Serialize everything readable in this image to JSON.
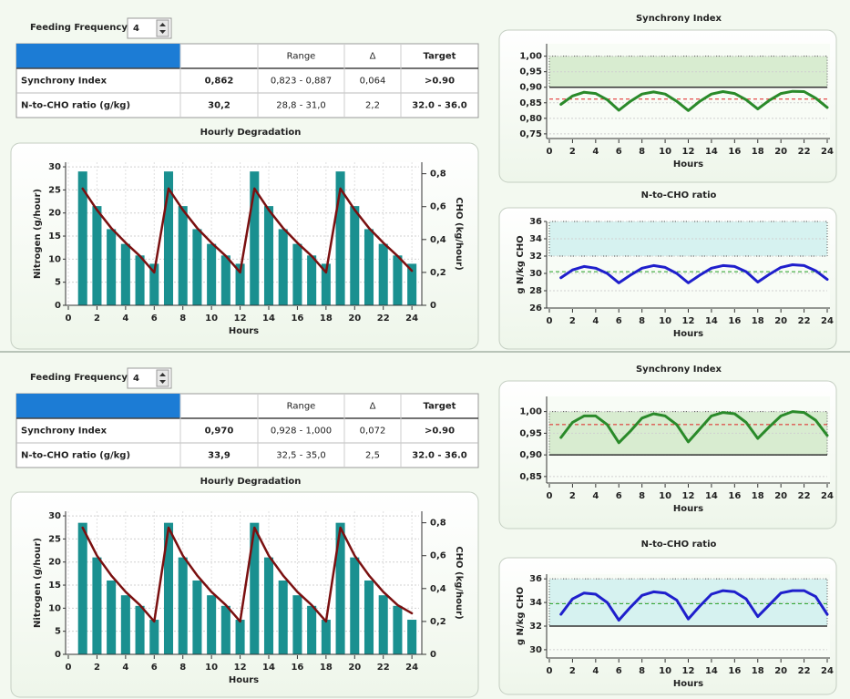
{
  "panels": [
    {
      "feeding_frequency": {
        "label": "Feeding Frequency",
        "value": 4
      },
      "table": {
        "header": [
          "Range",
          "Δ",
          "Target"
        ],
        "rows": [
          [
            "Synchrony Index",
            "0,862",
            "0,823 - 0,887",
            "0,064",
            ">0.90"
          ],
          [
            "N-to-CHO ratio (g/kg)",
            "30,2",
            "28,8 - 31,0",
            "2,2",
            "32.0 - 36.0"
          ]
        ]
      }
    },
    {
      "feeding_frequency": {
        "label": "Feeding Frequency",
        "value": 4
      },
      "table": {
        "header": [
          "Range",
          "Δ",
          "Target"
        ],
        "rows": [
          [
            "Synchrony Index",
            "0,970",
            "0,928 - 1,000",
            "0,072",
            ">0.90"
          ],
          [
            "N-to-CHO ratio (g/kg)",
            "33,9",
            "32,5 - 35,0",
            "2,5",
            "32.0 - 36.0"
          ]
        ]
      }
    }
  ],
  "chart_data": [
    {
      "type": "bar",
      "title": "Hourly Degradation",
      "xlabel": "Hours",
      "ylabel": "Nitrogen (g/hour)",
      "y2label": "CHO (kg/hour)",
      "x": [
        1,
        2,
        3,
        4,
        5,
        6,
        7,
        8,
        9,
        10,
        11,
        12,
        13,
        14,
        15,
        16,
        17,
        18,
        19,
        20,
        21,
        22,
        23,
        24
      ],
      "xlim": [
        0,
        24.5
      ],
      "xticks": [
        0,
        2,
        4,
        6,
        8,
        10,
        12,
        14,
        16,
        18,
        20,
        22,
        24
      ],
      "ylim": [
        0,
        31
      ],
      "yticks": [
        0,
        5,
        10,
        15,
        20,
        25,
        30
      ],
      "y2lim": [
        0,
        0.87
      ],
      "y2ticks": [
        0,
        {
          "value": 0.2,
          "label": "0,2"
        },
        {
          "value": 0.4,
          "label": "0,4"
        },
        {
          "value": 0.6,
          "label": "0,6"
        },
        {
          "value": 0.8,
          "label": "0,8"
        }
      ],
      "grid": true,
      "series": [
        {
          "type": "bar",
          "color": "#1a9090",
          "values": [
            29,
            21.5,
            16.5,
            13.3,
            10.8,
            9,
            29,
            21.5,
            16.5,
            13.3,
            10.8,
            9,
            29,
            21.5,
            16.5,
            13.3,
            10.8,
            9,
            29,
            21.5,
            16.5,
            13.3,
            10.8,
            9
          ]
        },
        {
          "type": "line",
          "axis": "y2",
          "color": "#7a1010",
          "values": [
            0.71,
            0.58,
            0.47,
            0.38,
            0.3,
            0.2,
            0.71,
            0.58,
            0.47,
            0.38,
            0.3,
            0.2,
            0.71,
            0.58,
            0.47,
            0.38,
            0.3,
            0.2,
            0.71,
            0.58,
            0.47,
            0.38,
            0.3,
            0.21
          ]
        }
      ]
    },
    {
      "type": "line",
      "title": "Synchrony Index",
      "xlabel": "Hours",
      "x": [
        1,
        2,
        3,
        4,
        5,
        6,
        7,
        8,
        9,
        10,
        11,
        12,
        13,
        14,
        15,
        16,
        17,
        18,
        19,
        20,
        21,
        22,
        23,
        24
      ],
      "xlim": [
        0,
        24
      ],
      "xticks": [
        0,
        2,
        4,
        6,
        8,
        10,
        12,
        14,
        16,
        18,
        20,
        22,
        24
      ],
      "ylim": [
        0.735,
        1.04
      ],
      "yticks": [
        {
          "value": 0.75,
          "label": "0,75"
        },
        {
          "value": 0.8,
          "label": "0,80"
        },
        {
          "value": 0.85,
          "label": "0,85"
        },
        {
          "value": 0.9,
          "label": "0,90"
        },
        {
          "value": 0.95,
          "label": "0,95"
        },
        {
          "value": 1.0,
          "label": "1,00"
        }
      ],
      "grid": true,
      "target_band": [
        0.9,
        1.0
      ],
      "band_color": "#d8ecd0",
      "reference_lines": [
        {
          "value": 0.9,
          "color": "#333333",
          "style": "solid"
        },
        {
          "value": 0.862,
          "color": "#e02020",
          "style": "dashed"
        }
      ],
      "series": [
        {
          "color": "#2a8a2a",
          "values": [
            0.845,
            0.872,
            0.884,
            0.88,
            0.86,
            0.826,
            0.855,
            0.878,
            0.885,
            0.878,
            0.855,
            0.825,
            0.855,
            0.878,
            0.886,
            0.88,
            0.86,
            0.83,
            0.858,
            0.88,
            0.887,
            0.886,
            0.865,
            0.835
          ]
        }
      ]
    },
    {
      "type": "line",
      "title": "N-to-CHO ratio",
      "xlabel": "Hours",
      "ylabel": "g N/kg CHO",
      "x": [
        1,
        2,
        3,
        4,
        5,
        6,
        7,
        8,
        9,
        10,
        11,
        12,
        13,
        14,
        15,
        16,
        17,
        18,
        19,
        20,
        21,
        22,
        23,
        24
      ],
      "xlim": [
        0,
        24
      ],
      "xticks": [
        0,
        2,
        4,
        6,
        8,
        10,
        12,
        14,
        16,
        18,
        20,
        22,
        24
      ],
      "ylim": [
        26,
        36
      ],
      "yticks": [
        26,
        28,
        30,
        32,
        34,
        36
      ],
      "grid": true,
      "target_band": [
        32,
        36
      ],
      "band_color": "#d6f2f0",
      "reference_lines": [
        {
          "value": 30.2,
          "color": "#22a022",
          "style": "dashed"
        }
      ],
      "series": [
        {
          "color": "#1f1fcc",
          "values": [
            29.5,
            30.4,
            30.8,
            30.6,
            30,
            28.9,
            29.8,
            30.6,
            30.9,
            30.7,
            30,
            28.9,
            29.8,
            30.6,
            30.9,
            30.8,
            30.2,
            29,
            29.9,
            30.7,
            31,
            30.9,
            30.3,
            29.3
          ]
        }
      ]
    },
    {
      "type": "bar",
      "title": "Hourly Degradation",
      "xlabel": "Hours",
      "ylabel": "Nitrogen (g/hour)",
      "y2label": "CHO (kg/hour)",
      "x": [
        1,
        2,
        3,
        4,
        5,
        6,
        7,
        8,
        9,
        10,
        11,
        12,
        13,
        14,
        15,
        16,
        17,
        18,
        19,
        20,
        21,
        22,
        23,
        24
      ],
      "xlim": [
        0,
        24.5
      ],
      "xticks": [
        0,
        2,
        4,
        6,
        8,
        10,
        12,
        14,
        16,
        18,
        20,
        22,
        24
      ],
      "ylim": [
        0,
        31
      ],
      "yticks": [
        0,
        5,
        10,
        15,
        20,
        25,
        30
      ],
      "y2lim": [
        0,
        0.87
      ],
      "y2ticks": [
        0,
        {
          "value": 0.2,
          "label": "0,2"
        },
        {
          "value": 0.4,
          "label": "0,4"
        },
        {
          "value": 0.6,
          "label": "0,6"
        },
        {
          "value": 0.8,
          "label": "0,8"
        }
      ],
      "grid": true,
      "series": [
        {
          "type": "bar",
          "color": "#1a9090",
          "values": [
            28.5,
            21,
            16,
            12.8,
            10.5,
            7.5,
            28.5,
            21,
            16,
            12.8,
            10.5,
            7.5,
            28.5,
            21,
            16,
            12.8,
            10.5,
            7.5,
            28.5,
            21,
            16,
            12.8,
            10.5,
            7.5
          ]
        },
        {
          "type": "line",
          "axis": "y2",
          "color": "#7a1010",
          "values": [
            0.77,
            0.6,
            0.48,
            0.38,
            0.3,
            0.2,
            0.77,
            0.6,
            0.48,
            0.38,
            0.3,
            0.2,
            0.77,
            0.6,
            0.48,
            0.38,
            0.3,
            0.2,
            0.77,
            0.6,
            0.48,
            0.38,
            0.3,
            0.25
          ]
        }
      ]
    },
    {
      "type": "line",
      "title": "Synchrony Index",
      "xlabel": "Hours",
      "x": [
        1,
        2,
        3,
        4,
        5,
        6,
        7,
        8,
        9,
        10,
        11,
        12,
        13,
        14,
        15,
        16,
        17,
        18,
        19,
        20,
        21,
        22,
        23,
        24
      ],
      "xlim": [
        0,
        24
      ],
      "xticks": [
        0,
        2,
        4,
        6,
        8,
        10,
        12,
        14,
        16,
        18,
        20,
        22,
        24
      ],
      "ylim": [
        0.835,
        1.035
      ],
      "yticks": [
        {
          "value": 0.85,
          "label": "0,85"
        },
        {
          "value": 0.9,
          "label": "0,90"
        },
        {
          "value": 0.95,
          "label": "0,95"
        },
        {
          "value": 1.0,
          "label": "1,00"
        }
      ],
      "grid": true,
      "target_band": [
        0.9,
        1.0
      ],
      "band_color": "#d8ecd0",
      "reference_lines": [
        {
          "value": 0.9,
          "color": "#333333",
          "style": "solid"
        },
        {
          "value": 0.97,
          "color": "#e02020",
          "style": "dashed"
        }
      ],
      "series": [
        {
          "color": "#2a8a2a",
          "values": [
            0.94,
            0.975,
            0.99,
            0.99,
            0.97,
            0.928,
            0.955,
            0.985,
            0.995,
            0.99,
            0.97,
            0.93,
            0.96,
            0.99,
            0.998,
            0.995,
            0.975,
            0.938,
            0.965,
            0.99,
            1.0,
            0.998,
            0.98,
            0.945
          ]
        }
      ]
    },
    {
      "type": "line",
      "title": "N-to-CHO ratio",
      "xlabel": "Hours",
      "ylabel": "g N/kg CHO",
      "x": [
        1,
        2,
        3,
        4,
        5,
        6,
        7,
        8,
        9,
        10,
        11,
        12,
        13,
        14,
        15,
        16,
        17,
        18,
        19,
        20,
        21,
        22,
        23,
        24
      ],
      "xlim": [
        0,
        24
      ],
      "xticks": [
        0,
        2,
        4,
        6,
        8,
        10,
        12,
        14,
        16,
        18,
        20,
        22,
        24
      ],
      "ylim": [
        29.3,
        36.4
      ],
      "yticks": [
        30,
        32,
        34,
        36
      ],
      "grid": true,
      "target_band": [
        32,
        36
      ],
      "band_color": "#d6f2f0",
      "reference_lines": [
        {
          "value": 32,
          "color": "#333333",
          "style": "solid"
        },
        {
          "value": 33.9,
          "color": "#22a022",
          "style": "dashed"
        }
      ],
      "series": [
        {
          "color": "#1f1fcc",
          "values": [
            33,
            34.3,
            34.8,
            34.7,
            34,
            32.5,
            33.6,
            34.6,
            34.9,
            34.8,
            34.2,
            32.6,
            33.7,
            34.7,
            35,
            34.9,
            34.3,
            32.8,
            33.8,
            34.8,
            35,
            35,
            34.5,
            33
          ]
        }
      ]
    }
  ]
}
